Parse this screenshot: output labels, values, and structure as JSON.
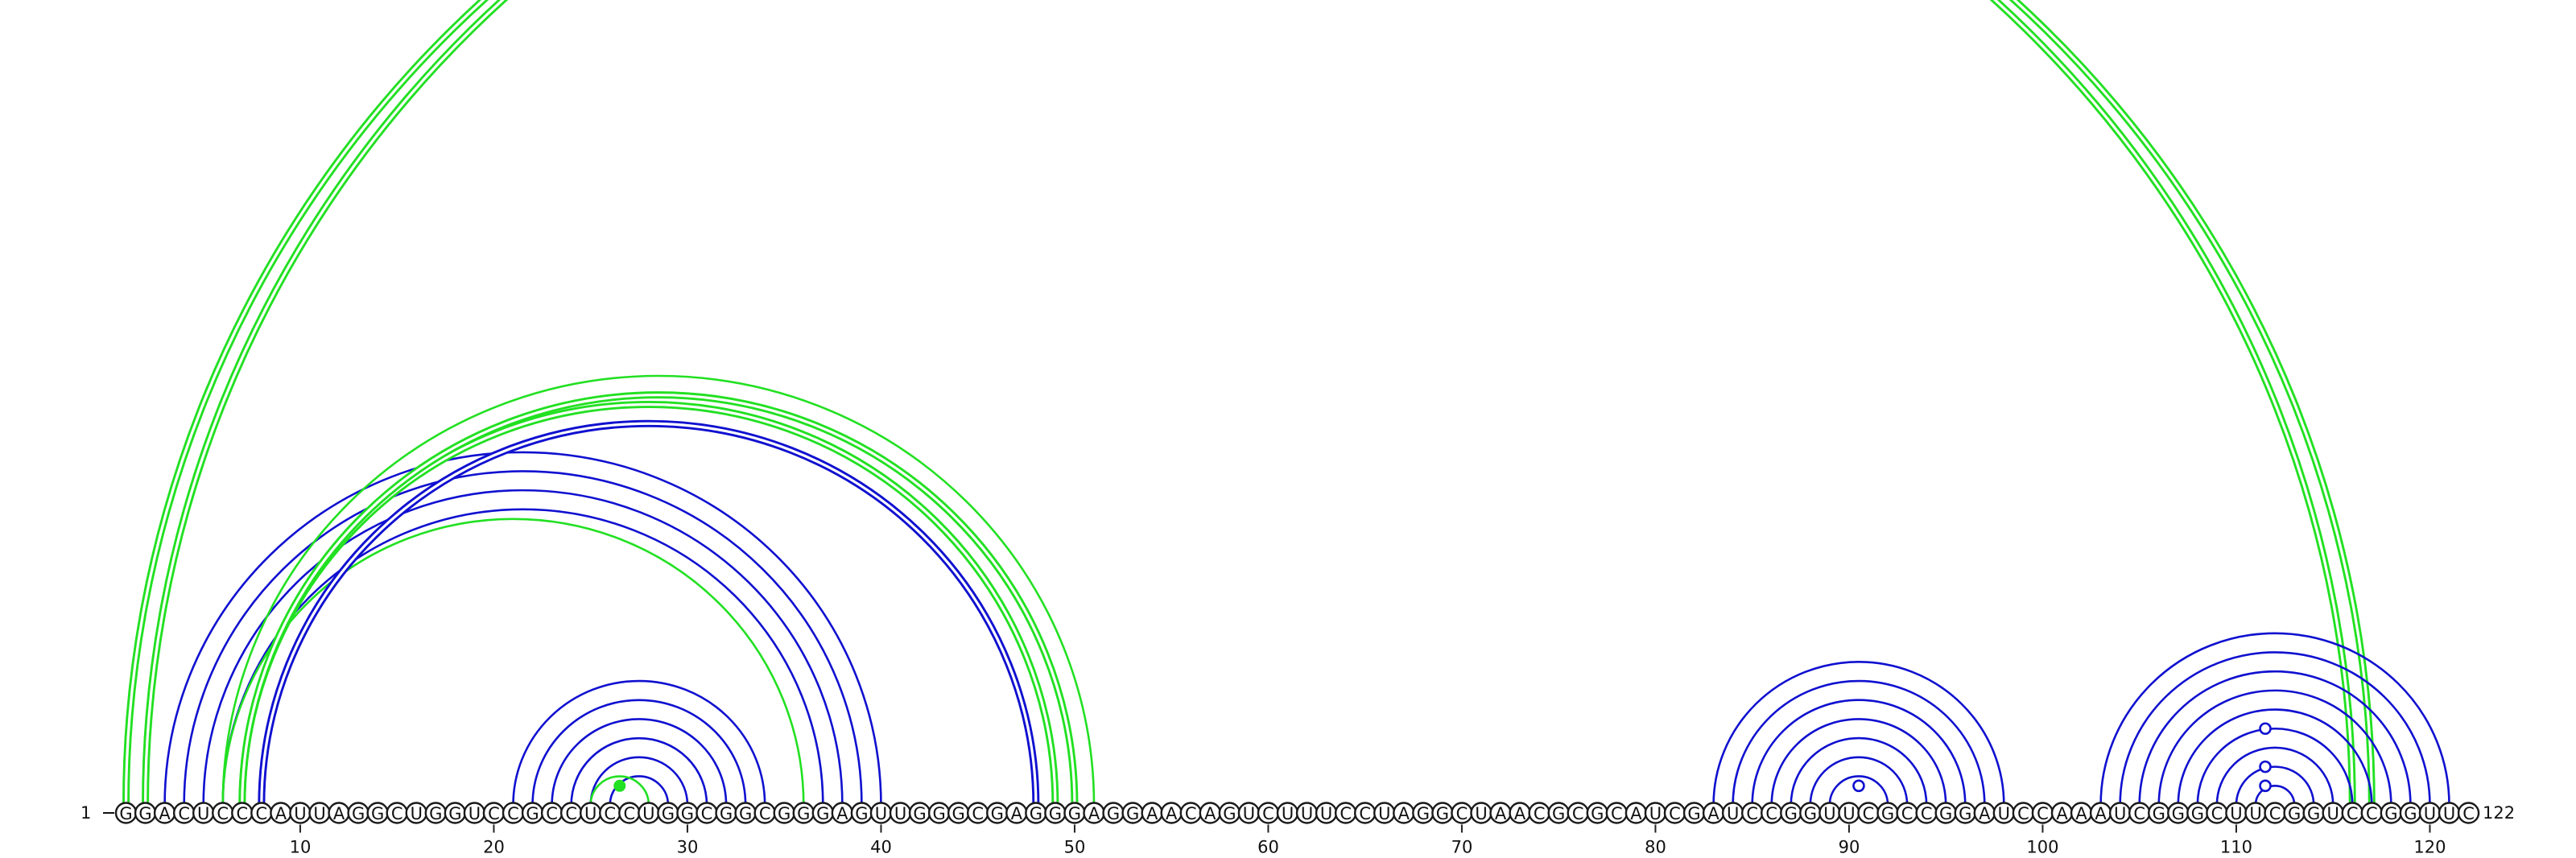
{
  "sequence": "GGACUCCCAUUAGGCUGGUCCGCCUCCUGGCGGCGGGAGUUGGGCGAGGGAGGAACAGUCUUUCCUAGGCUAACGCGCAUCGAUCCGGUUCGCCGGAUCCAAAUCGGGCUUCGGUCCGGUUC",
  "start_label": "1",
  "end_label": "122",
  "tick_labels": [
    "10",
    "20",
    "30",
    "40",
    "50",
    "60",
    "70",
    "80",
    "90",
    "100",
    "110",
    "120"
  ],
  "colors": {
    "blue": "#1010d0",
    "green": "#22e022",
    "outline": "#1a1a1a"
  },
  "arcs": [
    {
      "i": 1,
      "j": 116,
      "color": "green",
      "double": true
    },
    {
      "i": 2,
      "j": 117,
      "color": "green",
      "double": true
    },
    {
      "i": 3,
      "j": 40,
      "color": "blue",
      "double": false
    },
    {
      "i": 4,
      "j": 39,
      "color": "blue",
      "double": false
    },
    {
      "i": 5,
      "j": 38,
      "color": "blue",
      "double": false
    },
    {
      "i": 6,
      "j": 37,
      "color": "blue",
      "double": false
    },
    {
      "i": 6,
      "j": 36,
      "color": "green",
      "double": false
    },
    {
      "i": 7,
      "j": 49,
      "color": "green",
      "double": true
    },
    {
      "i": 8,
      "j": 48,
      "color": "blue",
      "double": true
    },
    {
      "i": 6,
      "j": 51,
      "color": "green",
      "double": false
    },
    {
      "i": 7,
      "j": 50,
      "color": "green",
      "double": true
    },
    {
      "i": 21,
      "j": 34,
      "color": "blue",
      "double": false
    },
    {
      "i": 22,
      "j": 33,
      "color": "blue",
      "double": false
    },
    {
      "i": 23,
      "j": 32,
      "color": "blue",
      "double": false
    },
    {
      "i": 24,
      "j": 31,
      "color": "blue",
      "double": false
    },
    {
      "i": 25,
      "j": 30,
      "color": "blue",
      "double": false
    },
    {
      "i": 26,
      "j": 29,
      "color": "blue",
      "double": false
    },
    {
      "i": 25,
      "j": 28,
      "color": "green",
      "double": false
    },
    {
      "i": 83,
      "j": 98,
      "color": "blue",
      "double": false
    },
    {
      "i": 84,
      "j": 97,
      "color": "blue",
      "double": false
    },
    {
      "i": 85,
      "j": 96,
      "color": "blue",
      "double": false
    },
    {
      "i": 86,
      "j": 95,
      "color": "blue",
      "double": false
    },
    {
      "i": 87,
      "j": 94,
      "color": "blue",
      "double": false
    },
    {
      "i": 88,
      "j": 93,
      "color": "blue",
      "double": false
    },
    {
      "i": 89,
      "j": 92,
      "color": "blue",
      "double": false
    },
    {
      "i": 103,
      "j": 121,
      "color": "blue",
      "double": false
    },
    {
      "i": 104,
      "j": 120,
      "color": "blue",
      "double": false
    },
    {
      "i": 105,
      "j": 119,
      "color": "blue",
      "double": false
    },
    {
      "i": 106,
      "j": 118,
      "color": "blue",
      "double": false
    },
    {
      "i": 107,
      "j": 117,
      "color": "blue",
      "double": false
    },
    {
      "i": 108,
      "j": 116,
      "color": "blue",
      "double": false
    },
    {
      "i": 109,
      "j": 115,
      "color": "blue",
      "double": false
    },
    {
      "i": 110,
      "j": 114,
      "color": "blue",
      "double": false
    },
    {
      "i": 111,
      "j": 113,
      "color": "blue",
      "double": false
    }
  ],
  "markers": [
    {
      "center": 26.5,
      "level": 1,
      "style": "filled"
    },
    {
      "center": 90.5,
      "level": 1,
      "style": "open"
    },
    {
      "center": 111.5,
      "level": 1,
      "style": "open"
    },
    {
      "center": 111.5,
      "level": 2,
      "style": "open"
    },
    {
      "center": 111.5,
      "level": 4,
      "style": "open"
    }
  ]
}
